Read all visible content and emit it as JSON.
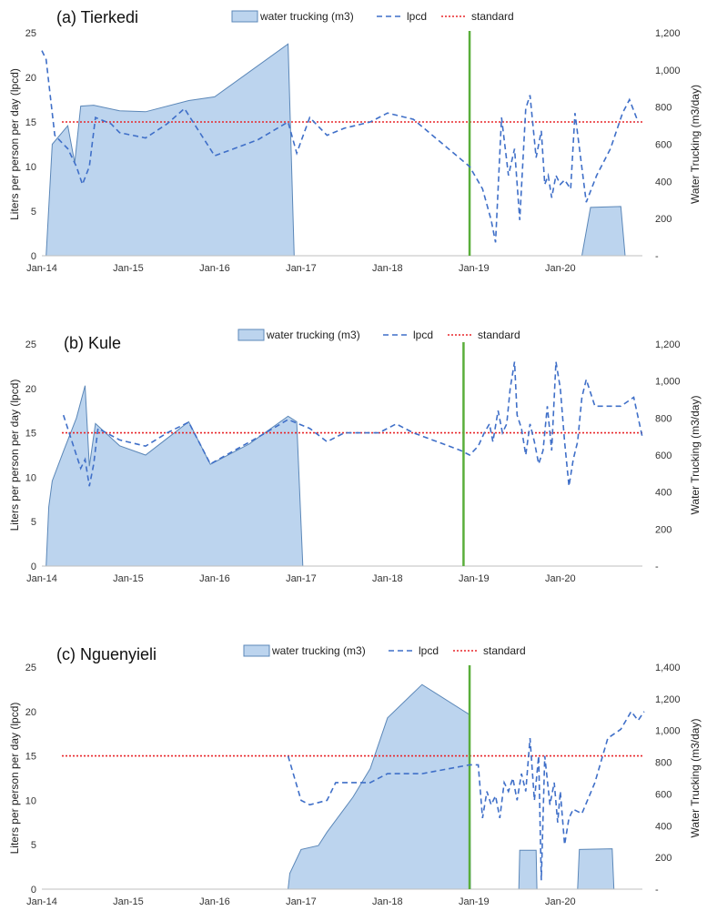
{
  "chart_data": [
    {
      "type": "area",
      "title": "(a) Tierkedi",
      "ylabel": "Liters per person per day (lpcd)",
      "y2label": "Water Trucking (m3/day)",
      "ylim": [
        0,
        25
      ],
      "y2lim": [
        0,
        1200
      ],
      "yticks": [
        "0",
        "5",
        "10",
        "15",
        "20",
        "25"
      ],
      "y2ticks": [
        "-",
        "200",
        "400",
        "600",
        "800",
        "1,000",
        "1,200"
      ],
      "xticks": [
        "Jan-14",
        "Jan-15",
        "Jan-16",
        "Jan-17",
        "Jan-18",
        "Jan-19",
        "Jan-20"
      ],
      "legend": [
        "water trucking (m3)",
        "lpcd",
        "standard"
      ],
      "standard": 15,
      "marker_date": 2018.95,
      "trucking": [
        [
          [
            2014.05,
            0
          ],
          [
            2014.12,
            600
          ],
          [
            2014.3,
            700
          ],
          [
            2014.38,
            500
          ],
          [
            2014.45,
            805
          ],
          [
            2014.6,
            810
          ],
          [
            2014.9,
            780
          ],
          [
            2015.2,
            775
          ],
          [
            2015.7,
            835
          ],
          [
            2016.0,
            855
          ],
          [
            2016.85,
            1140
          ],
          [
            2016.92,
            0
          ]
        ],
        [
          [
            2020.25,
            0
          ],
          [
            2020.35,
            260
          ],
          [
            2020.7,
            265
          ],
          [
            2020.75,
            0
          ]
        ]
      ],
      "lpcd": [
        [
          2014.0,
          23
        ],
        [
          2014.05,
          22
        ],
        [
          2014.15,
          13.5
        ],
        [
          2014.3,
          12
        ],
        [
          2014.4,
          10
        ],
        [
          2014.47,
          8
        ],
        [
          2014.55,
          10
        ],
        [
          2014.62,
          15.5
        ],
        [
          2014.8,
          14.8
        ],
        [
          2014.9,
          13.8
        ],
        [
          2015.2,
          13.2
        ],
        [
          2015.45,
          14.8
        ],
        [
          2015.65,
          16.5
        ],
        [
          2016.0,
          11.2
        ],
        [
          2016.5,
          13
        ],
        [
          2016.85,
          15
        ],
        [
          2016.95,
          11.5
        ],
        [
          2017.1,
          15.5
        ],
        [
          2017.3,
          13.5
        ],
        [
          2017.5,
          14.3
        ],
        [
          2017.8,
          15
        ],
        [
          2018.0,
          16
        ],
        [
          2018.3,
          15.3
        ],
        [
          2018.95,
          10
        ],
        [
          2019.1,
          7.5
        ],
        [
          2019.2,
          4
        ],
        [
          2019.25,
          1.5
        ],
        [
          2019.32,
          15.5
        ],
        [
          2019.4,
          9
        ],
        [
          2019.47,
          12
        ],
        [
          2019.53,
          4
        ],
        [
          2019.6,
          16.5
        ],
        [
          2019.65,
          18
        ],
        [
          2019.72,
          11
        ],
        [
          2019.78,
          14
        ],
        [
          2019.82,
          8
        ],
        [
          2019.86,
          9
        ],
        [
          2019.9,
          6.5
        ],
        [
          2019.95,
          9
        ],
        [
          2020.0,
          8
        ],
        [
          2020.05,
          8.5
        ],
        [
          2020.12,
          7.5
        ],
        [
          2020.17,
          16
        ],
        [
          2020.3,
          6
        ],
        [
          2020.42,
          9
        ],
        [
          2020.58,
          12
        ],
        [
          2020.72,
          16
        ],
        [
          2020.8,
          17.5
        ],
        [
          2020.9,
          15
        ]
      ]
    },
    {
      "type": "area",
      "title": "(b) Kule",
      "ylabel": "Liters per person per day (lpcd)",
      "y2label": "Water Trucking (m3/day)",
      "ylim": [
        0,
        25
      ],
      "y2lim": [
        0,
        1200
      ],
      "yticks": [
        "0",
        "5",
        "10",
        "15",
        "20",
        "25"
      ],
      "y2ticks": [
        "-",
        "200",
        "400",
        "600",
        "800",
        "1,000",
        "1,200"
      ],
      "xticks": [
        "Jan-14",
        "Jan-15",
        "Jan-16",
        "Jan-17",
        "Jan-18",
        "Jan-19",
        "Jan-20"
      ],
      "legend": [
        "water trucking (m3)",
        "lpcd",
        "standard"
      ],
      "standard": 15,
      "marker_date": 2018.88,
      "trucking": [
        [
          [
            2014.05,
            0
          ],
          [
            2014.08,
            320
          ],
          [
            2014.12,
            460
          ],
          [
            2014.25,
            620
          ],
          [
            2014.4,
            800
          ],
          [
            2014.5,
            975
          ],
          [
            2014.55,
            540
          ],
          [
            2014.62,
            770
          ],
          [
            2014.9,
            650
          ],
          [
            2015.2,
            600
          ],
          [
            2015.45,
            690
          ],
          [
            2015.7,
            780
          ],
          [
            2015.95,
            550
          ],
          [
            2016.4,
            660
          ],
          [
            2016.85,
            810
          ],
          [
            2016.95,
            780
          ],
          [
            2017.02,
            0
          ]
        ]
      ],
      "lpcd": [
        [
          2014.25,
          17
        ],
        [
          2014.35,
          14
        ],
        [
          2014.45,
          11
        ],
        [
          2014.5,
          12
        ],
        [
          2014.55,
          9
        ],
        [
          2014.6,
          11.5
        ],
        [
          2014.65,
          15.5
        ],
        [
          2014.9,
          14.2
        ],
        [
          2015.2,
          13.5
        ],
        [
          2015.45,
          15
        ],
        [
          2015.7,
          16.2
        ],
        [
          2015.95,
          11.5
        ],
        [
          2016.5,
          14.5
        ],
        [
          2016.85,
          16.5
        ],
        [
          2017.1,
          15.5
        ],
        [
          2017.3,
          14
        ],
        [
          2017.5,
          15
        ],
        [
          2017.9,
          15
        ],
        [
          2018.1,
          16
        ],
        [
          2018.3,
          15
        ],
        [
          2018.85,
          13
        ],
        [
          2018.95,
          12.5
        ],
        [
          2019.05,
          13.5
        ],
        [
          2019.12,
          15
        ],
        [
          2019.18,
          16
        ],
        [
          2019.22,
          14
        ],
        [
          2019.28,
          17.5
        ],
        [
          2019.33,
          15
        ],
        [
          2019.38,
          16
        ],
        [
          2019.42,
          20
        ],
        [
          2019.47,
          23
        ],
        [
          2019.5,
          17
        ],
        [
          2019.55,
          15.5
        ],
        [
          2019.6,
          12.5
        ],
        [
          2019.65,
          16
        ],
        [
          2019.7,
          14
        ],
        [
          2019.75,
          11.5
        ],
        [
          2019.8,
          13
        ],
        [
          2019.85,
          18
        ],
        [
          2019.9,
          13
        ],
        [
          2019.95,
          23
        ],
        [
          2020.0,
          20
        ],
        [
          2020.05,
          14
        ],
        [
          2020.1,
          9
        ],
        [
          2020.15,
          12
        ],
        [
          2020.2,
          14
        ],
        [
          2020.25,
          19
        ],
        [
          2020.3,
          21
        ],
        [
          2020.4,
          18
        ],
        [
          2020.7,
          18
        ],
        [
          2020.85,
          19
        ],
        [
          2020.95,
          14.5
        ]
      ]
    },
    {
      "type": "area",
      "title": "(c) Nguenyieli",
      "ylabel": "Liters per person per day (lpcd)",
      "y2label": "Water Trucking (m3/day)",
      "ylim": [
        0,
        25
      ],
      "y2lim": [
        0,
        1400
      ],
      "yticks": [
        "0",
        "5",
        "10",
        "15",
        "20",
        "25"
      ],
      "y2ticks": [
        "-",
        "200",
        "400",
        "600",
        "800",
        "1,000",
        "1,200",
        "1,400"
      ],
      "xticks": [
        "Jan-14",
        "Jan-15",
        "Jan-16",
        "Jan-17",
        "Jan-18",
        "Jan-19",
        "Jan-20"
      ],
      "legend": [
        "water trucking (m3)",
        "lpcd",
        "standard"
      ],
      "standard": 15,
      "marker_date": 2018.95,
      "trucking": [
        [
          [
            2016.85,
            0
          ],
          [
            2016.87,
            100
          ],
          [
            2017.0,
            250
          ],
          [
            2017.2,
            275
          ],
          [
            2017.3,
            360
          ],
          [
            2017.6,
            580
          ],
          [
            2017.8,
            760
          ],
          [
            2018.0,
            1080
          ],
          [
            2018.4,
            1290
          ],
          [
            2018.95,
            1100
          ],
          [
            2018.96,
            0
          ]
        ],
        [
          [
            2019.52,
            0
          ],
          [
            2019.53,
            245
          ],
          [
            2019.72,
            245
          ],
          [
            2019.73,
            0
          ]
        ],
        [
          [
            2020.2,
            0
          ],
          [
            2020.22,
            250
          ],
          [
            2020.6,
            255
          ],
          [
            2020.62,
            0
          ]
        ]
      ],
      "lpcd": [
        [
          2016.85,
          15
        ],
        [
          2017.0,
          10
        ],
        [
          2017.1,
          9.5
        ],
        [
          2017.3,
          10
        ],
        [
          2017.4,
          12
        ],
        [
          2017.6,
          12
        ],
        [
          2017.8,
          12
        ],
        [
          2018.0,
          13
        ],
        [
          2018.4,
          13
        ],
        [
          2018.95,
          14
        ],
        [
          2019.05,
          14
        ],
        [
          2019.1,
          8
        ],
        [
          2019.15,
          11
        ],
        [
          2019.2,
          9.5
        ],
        [
          2019.25,
          10.5
        ],
        [
          2019.3,
          8
        ],
        [
          2019.35,
          12
        ],
        [
          2019.4,
          11
        ],
        [
          2019.45,
          12.5
        ],
        [
          2019.5,
          10
        ],
        [
          2019.55,
          13
        ],
        [
          2019.6,
          11
        ],
        [
          2019.65,
          17
        ],
        [
          2019.7,
          10
        ],
        [
          2019.75,
          15
        ],
        [
          2019.78,
          1
        ],
        [
          2019.82,
          15
        ],
        [
          2019.88,
          9.5
        ],
        [
          2019.93,
          12
        ],
        [
          2019.97,
          7.5
        ],
        [
          2020.0,
          11
        ],
        [
          2020.05,
          5
        ],
        [
          2020.1,
          8
        ],
        [
          2020.15,
          9
        ],
        [
          2020.25,
          8.5
        ],
        [
          2020.4,
          12
        ],
        [
          2020.55,
          17
        ],
        [
          2020.7,
          18
        ],
        [
          2020.82,
          20
        ],
        [
          2020.9,
          19
        ],
        [
          2020.97,
          20
        ]
      ]
    }
  ]
}
